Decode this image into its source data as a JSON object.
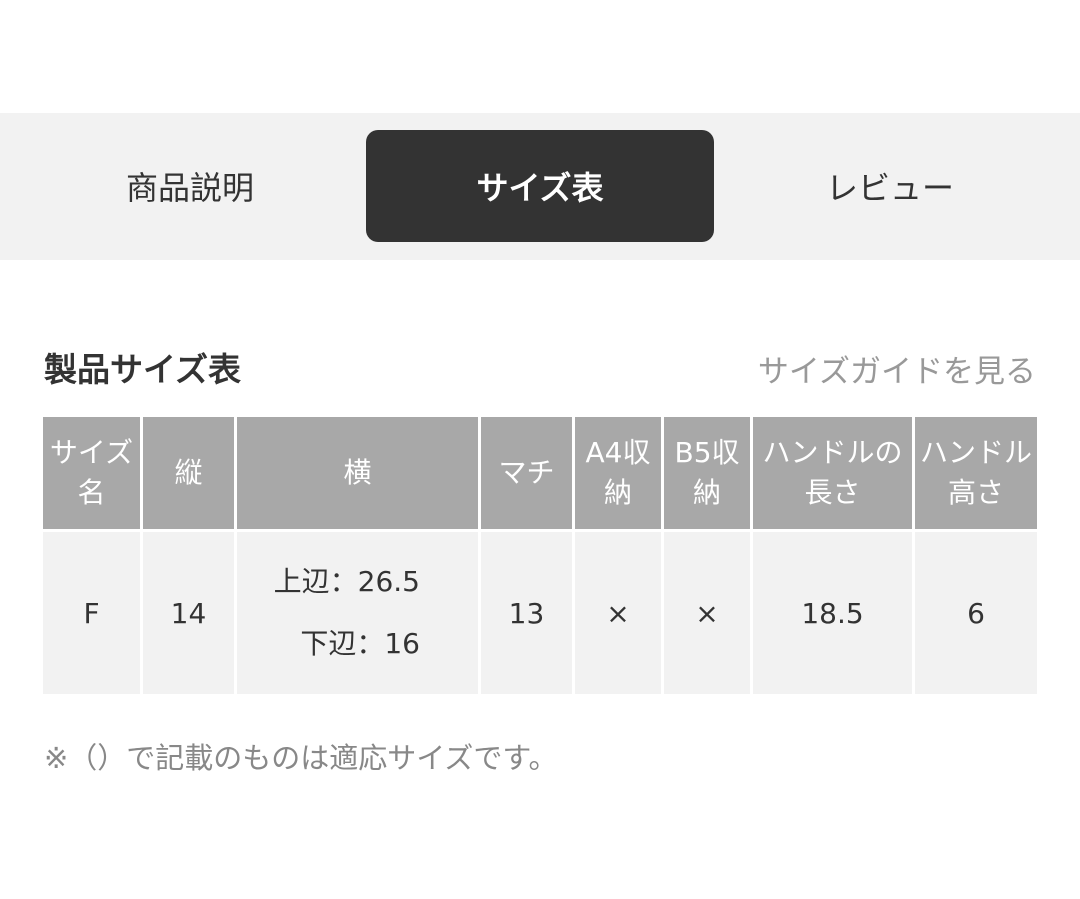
{
  "tabs": [
    {
      "label": "商品説明",
      "active": false
    },
    {
      "label": "サイズ表",
      "active": true
    },
    {
      "label": "レビュー",
      "active": false
    }
  ],
  "section": {
    "title": "製品サイズ表",
    "guide_link": "サイズガイドを見る"
  },
  "table": {
    "headers": [
      "サイズ名",
      "縦",
      "横",
      "マチ",
      "A4収納",
      "B5収納",
      "ハンドルの長さ",
      "ハンドル高さ"
    ],
    "rows": [
      {
        "size": "F",
        "height": "14",
        "width_top": "上辺：26.5",
        "width_bottom": "下辺：16",
        "gusset": "13",
        "a4": "×",
        "b5": "×",
        "handle_length": "18.5",
        "handle_height": "6"
      }
    ]
  },
  "note": "※（）で記載のものは適応サイズです。",
  "colors": {
    "tab_active_bg": "#333333",
    "header_bg": "#a8a8a8",
    "cell_bg": "#f2f2f2"
  }
}
